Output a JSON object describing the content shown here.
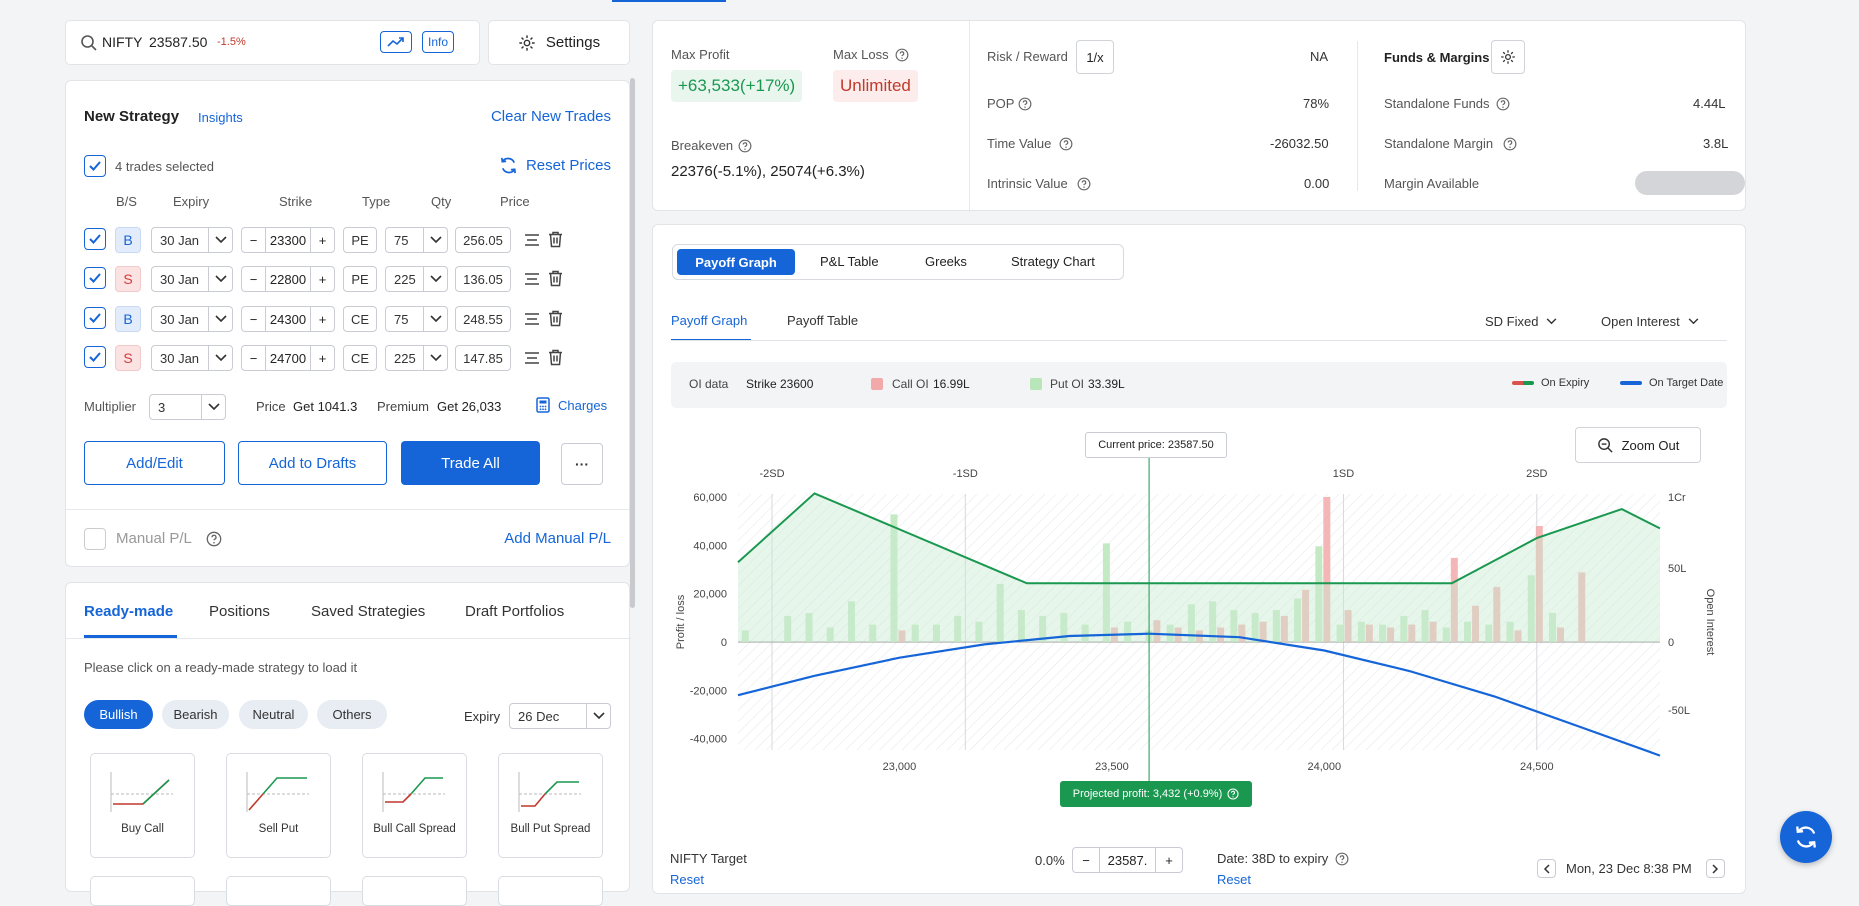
{
  "search": {
    "symbol": "NIFTY",
    "price": "23587.50",
    "change": "-1.5%",
    "info_label": "Info"
  },
  "settings_label": "Settings",
  "strategy": {
    "title": "New Strategy",
    "insights": "Insights",
    "clear": "Clear New Trades",
    "trades_selected": "4 trades selected",
    "reset_prices": "Reset Prices",
    "headers": {
      "bs": "B/S",
      "expiry": "Expiry",
      "strike": "Strike",
      "type": "Type",
      "qty": "Qty",
      "price": "Price"
    },
    "rows": [
      {
        "bs": "B",
        "expiry": "30 Jan",
        "strike": "23300",
        "type": "PE",
        "qty": "75",
        "price": "256.05"
      },
      {
        "bs": "S",
        "expiry": "30 Jan",
        "strike": "22800",
        "type": "PE",
        "qty": "225",
        "price": "136.05"
      },
      {
        "bs": "B",
        "expiry": "30 Jan",
        "strike": "24300",
        "type": "CE",
        "qty": "75",
        "price": "248.55"
      },
      {
        "bs": "S",
        "expiry": "30 Jan",
        "strike": "24700",
        "type": "CE",
        "qty": "225",
        "price": "147.85"
      }
    ],
    "multiplier_label": "Multiplier",
    "multiplier": "3",
    "price_label": "Price",
    "price_value": "Get 1041.3",
    "premium_label": "Premium",
    "premium_value": "Get 26,033",
    "charges": "Charges",
    "add_edit": "Add/Edit",
    "add_drafts": "Add to Drafts",
    "trade_all": "Trade All",
    "more": "···",
    "manual_pl": "Manual P/L",
    "add_manual_pl": "Add Manual P/L"
  },
  "lower_tabs": [
    "Ready-made",
    "Positions",
    "Saved Strategies",
    "Draft Portfolios"
  ],
  "readymade": {
    "hint": "Please click on a ready-made strategy to load it",
    "filters": [
      "Bullish",
      "Bearish",
      "Neutral",
      "Others"
    ],
    "expiry_label": "Expiry",
    "expiry": "26 Dec",
    "cards": [
      "Buy Call",
      "Sell Put",
      "Bull Call Spread",
      "Bull Put Spread"
    ]
  },
  "summary": {
    "max_profit_label": "Max Profit",
    "max_profit": "+63,533(+17%)",
    "max_loss_label": "Max Loss",
    "max_loss": "Unlimited",
    "breakeven_label": "Breakeven",
    "breakeven": "22376(-5.1%), 25074(+6.3%)",
    "rr_label": "Risk / Reward",
    "rr_btn": "1/x",
    "rr_value": "NA",
    "pop_label": "POP",
    "pop": "78%",
    "time_value_label": "Time Value",
    "time_value": "-26032.50",
    "intrinsic_label": "Intrinsic Value",
    "intrinsic": "0.00",
    "funds_title": "Funds & Margins",
    "standalone_funds_label": "Standalone Funds",
    "standalone_funds": "4.44L",
    "standalone_margin_label": "Standalone Margin",
    "standalone_margin": "3.8L",
    "margin_available_label": "Margin Available"
  },
  "chart_tabs": [
    "Payoff Graph",
    "P&L Table",
    "Greeks",
    "Strategy Chart"
  ],
  "sub_tabs": [
    "Payoff Graph",
    "Payoff Table"
  ],
  "sd_select": "SD Fixed",
  "oi_select": "Open Interest",
  "oi": {
    "label": "OI data",
    "strike": "Strike 23600",
    "call_label": "Call OI",
    "call": "16.99L",
    "put_label": "Put OI",
    "put": "33.39L",
    "on_expiry": "On Expiry",
    "on_target": "On Target Date"
  },
  "zoom_out": "Zoom Out",
  "current_price": "Current price: 23587.50",
  "projected": "Projected profit: 3,432 (+0.9%)",
  "target": {
    "label": "NIFTY Target",
    "reset": "Reset",
    "pct": "0.0%",
    "value": "23587.",
    "date_label": "Date: 38D to expiry",
    "date_reset": "Reset",
    "date": "Mon, 23 Dec 8:38 PM"
  },
  "colors": {
    "accent": "#1565d8",
    "profit": "#1a9850",
    "loss": "#c0392b",
    "call_oi": "#f2a9a9",
    "put_oi": "#b9e6b9"
  },
  "chart_data": {
    "type": "line",
    "title": "",
    "xlabel": "",
    "ylabel": "Profit / loss",
    "y2label": "Open Interest",
    "xlim": [
      22620,
      24790
    ],
    "ylim": [
      -45000,
      63000
    ],
    "x_ticks": [
      "23,000",
      "23,500",
      "24,000",
      "24,500"
    ],
    "y_ticks": [
      "60,000",
      "40,000",
      "20,000",
      "0",
      "-20,000",
      "-40,000"
    ],
    "y2_ticks": [
      "1Cr",
      "50L",
      "0",
      "-50L"
    ],
    "sd_labels": [
      "-2SD",
      "-1SD",
      "1SD",
      "2SD"
    ],
    "sd_x": [
      22700,
      23155,
      24045,
      24500
    ],
    "current_price": 23587.5,
    "series": [
      {
        "name": "On Expiry",
        "x": [
          22620,
          22800,
          23300,
          23500,
          23587.5,
          24300,
          24500,
          24700,
          24790
        ],
        "y": [
          33000,
          61500,
          24300,
          24300,
          24300,
          24300,
          43000,
          55000,
          47000
        ]
      },
      {
        "name": "On Target Date",
        "x": [
          22620,
          22800,
          23000,
          23200,
          23400,
          23587.5,
          23800,
          24000,
          24200,
          24400,
          24600,
          24790
        ],
        "y": [
          -22000,
          -14000,
          -6500,
          -1000,
          2500,
          3432,
          2000,
          -3500,
          -12000,
          -22500,
          -35000,
          -47000
        ]
      }
    ],
    "oi_bars": {
      "strikes": [
        22650,
        22700,
        22750,
        22800,
        22850,
        22900,
        22950,
        23000,
        23050,
        23100,
        23150,
        23200,
        23250,
        23300,
        23350,
        23400,
        23450,
        23500,
        23550,
        23600,
        23650,
        23700,
        23750,
        23800,
        23850,
        23900,
        23950,
        24000,
        24050,
        24100,
        24150,
        24200,
        24250,
        24300,
        24350,
        24400,
        24450,
        24500,
        24550,
        24600,
        24650
      ],
      "call": [
        0,
        0,
        0,
        0,
        0,
        0,
        0,
        8,
        0,
        0,
        0,
        0,
        0,
        0,
        0,
        0,
        0,
        10,
        0,
        15,
        10,
        8,
        10,
        12,
        14,
        18,
        36,
        100,
        22,
        12,
        10,
        12,
        14,
        58,
        25,
        38,
        8,
        80,
        10,
        48,
        0
      ],
      "put": [
        8,
        0,
        18,
        20,
        10,
        28,
        12,
        88,
        12,
        12,
        18,
        14,
        40,
        22,
        18,
        20,
        12,
        68,
        14,
        8,
        12,
        26,
        28,
        22,
        20,
        22,
        30,
        66,
        12,
        14,
        12,
        18,
        22,
        10,
        14,
        12,
        14,
        46,
        20,
        0,
        0
      ]
    }
  }
}
